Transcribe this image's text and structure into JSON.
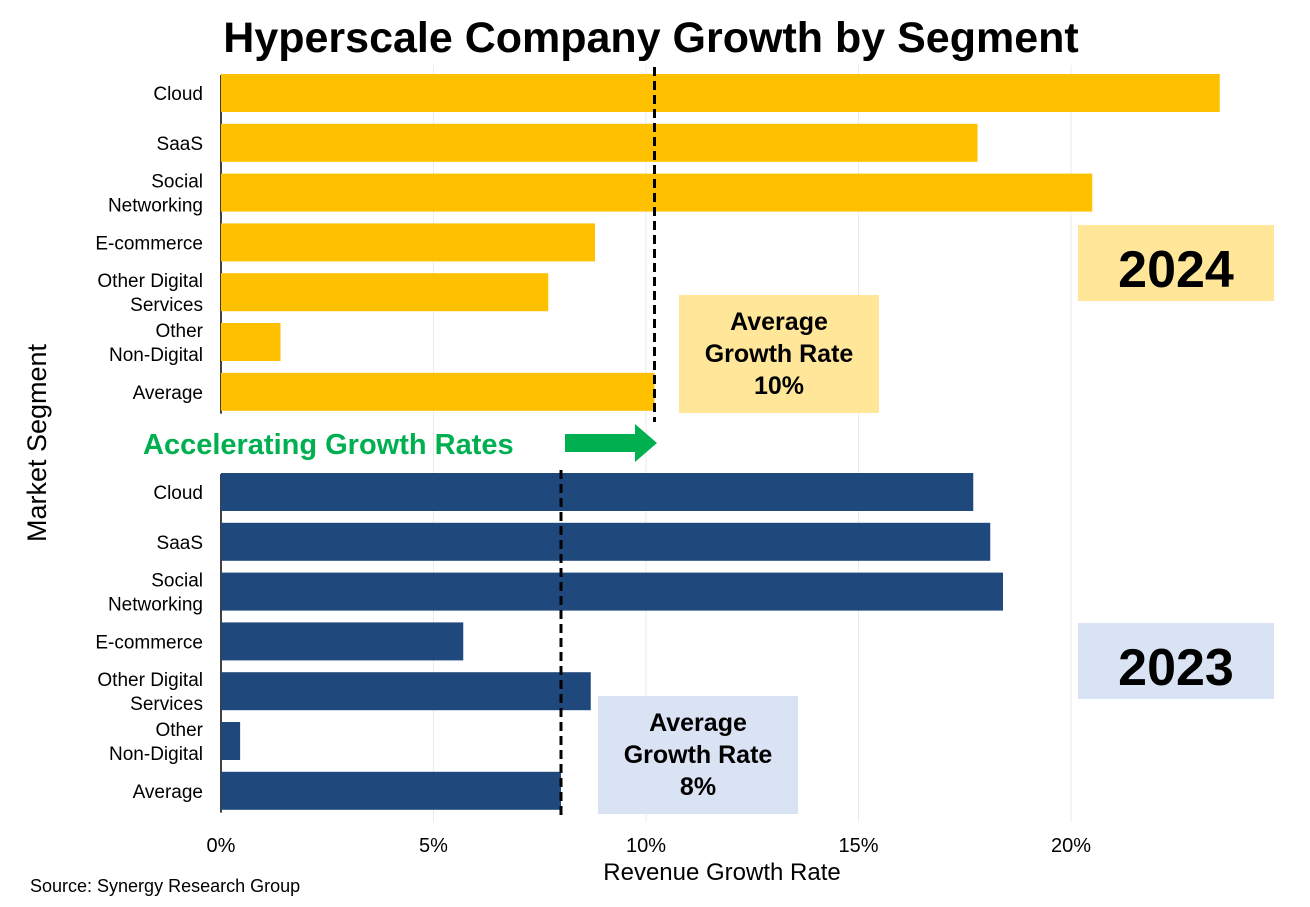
{
  "chart_data": {
    "type": "bar",
    "orientation": "horizontal",
    "title": "Hyperscale Company Growth by Segment",
    "xlabel": "Revenue Growth Rate",
    "ylabel": "Market Segment",
    "xlim": [
      0,
      25
    ],
    "xticks": [
      0,
      5,
      10,
      15,
      20
    ],
    "xtick_labels": [
      "0%",
      "5%",
      "10%",
      "15%",
      "20%"
    ],
    "grid": "vertical",
    "categories": [
      [
        "Cloud"
      ],
      [
        "SaaS"
      ],
      [
        "Social",
        "Networking"
      ],
      [
        "E-commerce"
      ],
      [
        "Other Digital",
        "Services"
      ],
      [
        "Other",
        "Non-Digital"
      ],
      [
        "Average"
      ]
    ],
    "panels": [
      {
        "name": "2024",
        "color": "#FFC000",
        "label_box_color": "#FFE699",
        "values": [
          23.5,
          17.8,
          20.5,
          8.8,
          7.7,
          1.4,
          10.2
        ],
        "average_line": 10.2,
        "average_annotation": [
          "Average",
          "Growth Rate",
          "10%"
        ]
      },
      {
        "name": "2023",
        "color": "#1F497D",
        "label_box_color": "#DAE3F3",
        "values": [
          17.7,
          18.1,
          18.4,
          5.7,
          8.7,
          0.45,
          8.0
        ],
        "average_line": 8.0,
        "average_annotation": [
          "Average",
          "Growth Rate",
          "8%"
        ]
      }
    ],
    "annotation": {
      "text": "Accelerating Growth Rates",
      "color": "#00B050"
    },
    "source": "Source: Synergy Research Group"
  }
}
